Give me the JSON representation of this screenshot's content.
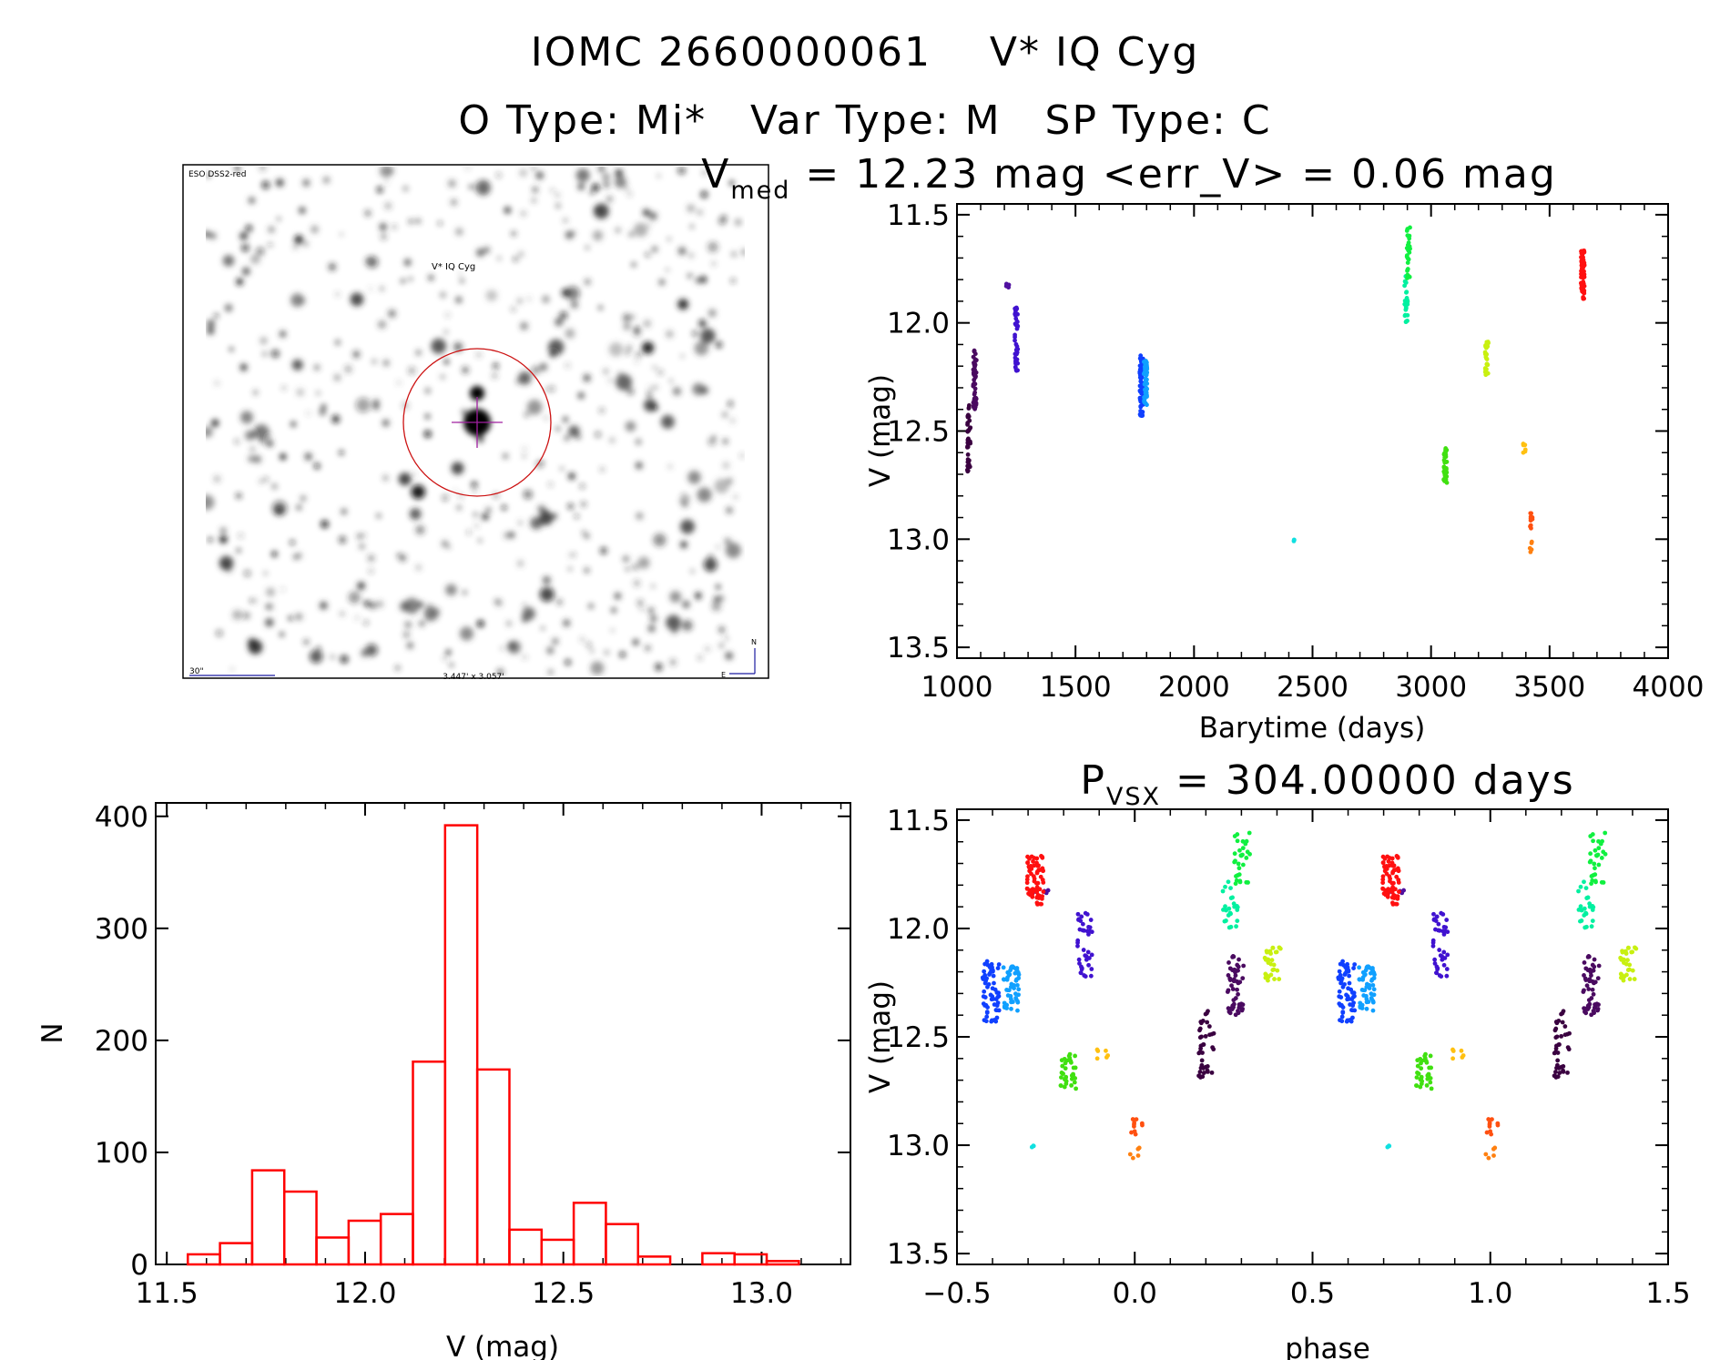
{
  "header": {
    "title": "IOMC 2660000061    V* IQ Cyg",
    "subtitle": "O Type: Mi*   Var Type: M   SP Type: C"
  },
  "image_panel": {
    "survey_label": "ESO DSS2-red",
    "target_label": "V* IQ Cyg",
    "scale_label": "30\"",
    "size_label": "3.447' x 3.057'",
    "compass_north": "N",
    "compass_east": "E",
    "colors": {
      "circle": "#cc1111",
      "labels": "#1a1aa0",
      "target": "#ee2222"
    }
  },
  "chart_data": [
    {
      "id": "lightcurve",
      "type": "scatter",
      "title": {
        "main": "V",
        "sub": "med",
        "rest": " = 12.23 mag <err_V> = 0.06 mag"
      },
      "xlabel": "Barytime (days)",
      "ylabel": "V (mag)",
      "xlim": [
        1000,
        4000
      ],
      "ylim": [
        13.55,
        11.45
      ],
      "y_inverted": true,
      "xticks": [
        "1000",
        "1500",
        "2000",
        "2500",
        "3000",
        "3500",
        "4000"
      ],
      "yticks": [
        "11.5",
        "12.0",
        "12.5",
        "13.0",
        "13.5"
      ],
      "segments": [
        {
          "t": 1050,
          "v": [
            12.38,
            12.7
          ],
          "n": 40,
          "color": "#3a0040"
        },
        {
          "t": 1075,
          "v": [
            12.12,
            12.4
          ],
          "n": 50,
          "color": "#4a0a60"
        },
        {
          "t": 1215,
          "v": [
            11.81,
            11.84
          ],
          "n": 6,
          "color": "#5010a0"
        },
        {
          "t": 1250,
          "v": [
            11.92,
            12.23
          ],
          "n": 40,
          "color": "#4012d0"
        },
        {
          "t": 1778,
          "v": [
            12.15,
            12.43
          ],
          "n": 60,
          "color": "#1040ff"
        },
        {
          "t": 1795,
          "v": [
            12.17,
            12.38
          ],
          "n": 50,
          "color": "#10a0ff"
        },
        {
          "t": 2420,
          "v": [
            13.0,
            13.01
          ],
          "n": 3,
          "color": "#10e0e0"
        },
        {
          "t": 2895,
          "v": [
            11.75,
            12.0
          ],
          "n": 25,
          "color": "#00f0a0"
        },
        {
          "t": 2905,
          "v": [
            11.55,
            11.8
          ],
          "n": 30,
          "color": "#10f040"
        },
        {
          "t": 3060,
          "v": [
            12.58,
            12.75
          ],
          "n": 35,
          "color": "#40e010"
        },
        {
          "t": 3235,
          "v": [
            12.07,
            12.25
          ],
          "n": 30,
          "color": "#c8f010"
        },
        {
          "t": 3395,
          "v": [
            12.55,
            12.62
          ],
          "n": 6,
          "color": "#ffc010"
        },
        {
          "t": 3425,
          "v": [
            12.88,
            12.95
          ],
          "n": 10,
          "color": "#ff5010"
        },
        {
          "t": 3418,
          "v": [
            13.0,
            13.06
          ],
          "n": 5,
          "color": "#ff8010"
        },
        {
          "t": 3640,
          "v": [
            11.66,
            11.9
          ],
          "n": 70,
          "color": "#ff1010"
        }
      ]
    },
    {
      "id": "histogram",
      "type": "bar",
      "xlabel": "V (mag)",
      "ylabel": "N",
      "xlim": [
        11.472,
        13.224
      ],
      "ylim": [
        0,
        412
      ],
      "xticks": [
        "11.5",
        "12.0",
        "12.5",
        "13.0"
      ],
      "yticks": [
        "0",
        "100",
        "200",
        "300",
        "400"
      ],
      "bin_start": 11.553,
      "bin_width": 0.0811,
      "values": [
        9,
        19,
        84,
        65,
        24,
        39,
        45,
        181,
        392,
        174,
        31,
        22,
        55,
        36,
        7,
        0,
        10,
        9,
        3
      ],
      "color": "#ff0000"
    },
    {
      "id": "phased",
      "type": "scatter",
      "title": {
        "main": "P",
        "sub": "VSX",
        "rest": " = 304.00000 days"
      },
      "period_days": 304.0,
      "xlabel": "phase",
      "ylabel": "V (mag)",
      "xlim": [
        -0.5,
        1.5
      ],
      "ylim": [
        13.55,
        11.45
      ],
      "y_inverted": true,
      "xticks": [
        "−0.5",
        "0.0",
        "0.5",
        "1.0",
        "1.5"
      ],
      "yticks": [
        "11.5",
        "12.0",
        "12.5",
        "13.0",
        "13.5"
      ]
    }
  ]
}
